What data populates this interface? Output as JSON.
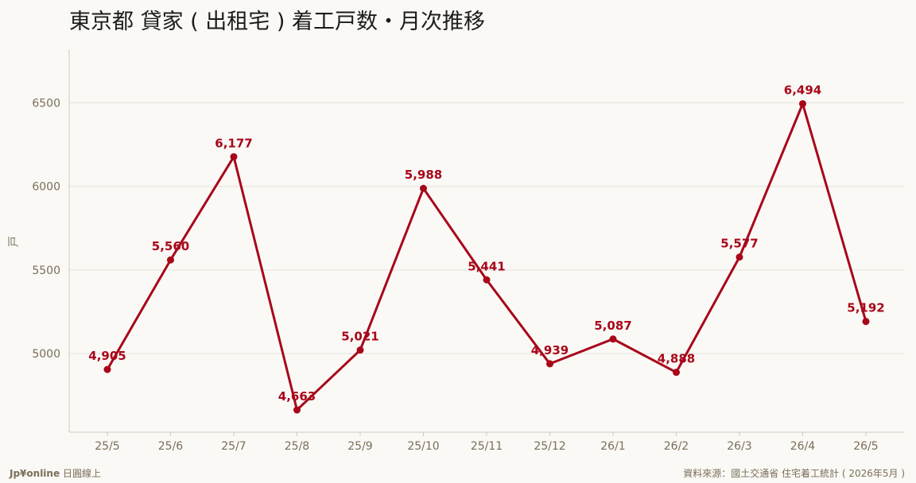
{
  "chart_data": {
    "type": "line",
    "title": "東京都 貸家 ( 出租宅 ) 着工戸数・月次推移",
    "xlabel": "",
    "ylabel": "戸",
    "categories": [
      "25/5",
      "25/6",
      "25/7",
      "25/8",
      "25/9",
      "25/10",
      "25/11",
      "25/12",
      "26/1",
      "26/2",
      "26/3",
      "26/4",
      "26/5"
    ],
    "series": [
      {
        "values": [
          4905,
          5560,
          6177,
          4663,
          5021,
          5988,
          5441,
          4939,
          5087,
          4888,
          5577,
          6494,
          5192
        ],
        "data_labels": [
          "4,905",
          "5,560",
          "6,177",
          "4,663",
          "5,021",
          "5,988",
          "5,441",
          "4,939",
          "5,087",
          "4,888",
          "5,577",
          "6,494",
          "5,192"
        ]
      }
    ],
    "yticks": [
      "5000",
      "5500",
      "6000",
      "6500"
    ],
    "ylim": [
      4530,
      6820
    ],
    "grid": true,
    "legend": "none",
    "colors": {
      "line": "#a8071a",
      "label": "#a8071a",
      "axis_text": "#7a6e57",
      "grid": "#e6e3dc"
    }
  },
  "footer": {
    "brand": "Jp¥online",
    "brand_sub": "日圓線上",
    "source": "資料來源：國土交通省 住宅着工統計 ( 2026年5月 )"
  }
}
